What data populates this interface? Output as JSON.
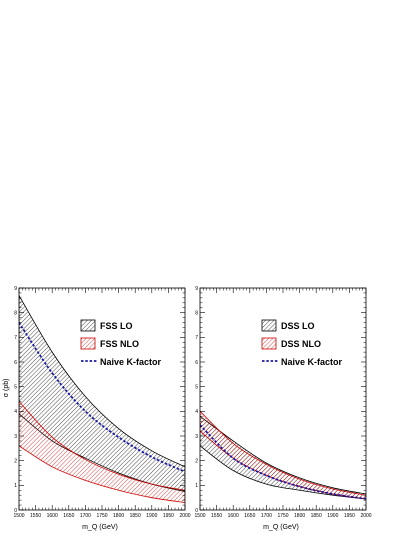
{
  "chart_data": [
    {
      "type": "area",
      "xlabel": "m_Q (GeV)",
      "ylabel": "σ (pb)",
      "xlim": [
        1500,
        2000
      ],
      "ylim": [
        0,
        9
      ],
      "xticks": [
        1500,
        1550,
        1600,
        1650,
        1700,
        1750,
        1800,
        1850,
        1900,
        1950,
        2000
      ],
      "yticks": [
        0,
        1,
        2,
        3,
        4,
        5,
        6,
        7,
        8,
        9
      ],
      "legend_position": "top-right",
      "legend": [
        {
          "label": "FSS LO",
          "style": "black-hatch"
        },
        {
          "label": "FSS NLO",
          "style": "red-hatch"
        },
        {
          "label": "Naive K-factor",
          "style": "blue-dashed"
        }
      ],
      "x": [
        1500,
        1600,
        1700,
        1800,
        1900,
        2000
      ],
      "bands": [
        {
          "name": "FSS LO",
          "color": "#000000",
          "lower": [
            3.9,
            2.8,
            2.1,
            1.5,
            1.05,
            0.75
          ],
          "upper": [
            8.7,
            6.4,
            4.6,
            3.3,
            2.4,
            1.75
          ]
        },
        {
          "name": "FSS NLO",
          "color": "#cc0000",
          "lower": [
            2.6,
            1.75,
            1.2,
            0.8,
            0.5,
            0.3
          ],
          "upper": [
            4.4,
            2.95,
            2.05,
            1.45,
            1.05,
            0.8
          ]
        }
      ],
      "lines": [
        {
          "name": "Naive K-factor",
          "color": "#1a1aa6",
          "values": [
            7.6,
            5.55,
            4.0,
            2.95,
            2.15,
            1.55
          ]
        }
      ]
    },
    {
      "type": "area",
      "xlabel": "m_Q (GeV)",
      "ylabel": "",
      "xlim": [
        1500,
        2000
      ],
      "ylim": [
        0,
        9
      ],
      "xticks": [
        1500,
        1550,
        1600,
        1650,
        1700,
        1750,
        1800,
        1850,
        1900,
        1950,
        2000
      ],
      "yticks": [
        0,
        1,
        2,
        3,
        4,
        5,
        6,
        7,
        8,
        9
      ],
      "legend_position": "top-right",
      "legend": [
        {
          "label": "DSS LO",
          "style": "black-hatch"
        },
        {
          "label": "DSS NLO",
          "style": "red-hatch"
        },
        {
          "label": "Naive K-factor",
          "style": "blue-dashed"
        }
      ],
      "x": [
        1500,
        1600,
        1700,
        1800,
        1900,
        2000
      ],
      "bands": [
        {
          "name": "DSS LO",
          "color": "#000000",
          "lower": [
            2.6,
            1.6,
            1.05,
            0.8,
            0.6,
            0.45
          ],
          "upper": [
            3.8,
            2.8,
            1.9,
            1.3,
            0.9,
            0.65
          ]
        },
        {
          "name": "DSS NLO",
          "color": "#cc0000",
          "lower": [
            3.2,
            2.1,
            1.4,
            0.95,
            0.65,
            0.45
          ],
          "upper": [
            4.0,
            2.7,
            1.85,
            1.25,
            0.85,
            0.6
          ]
        }
      ],
      "lines": [
        {
          "name": "Naive K-factor",
          "color": "#1a1aa6",
          "values": [
            3.45,
            2.1,
            1.4,
            0.95,
            0.65,
            0.45
          ]
        }
      ]
    }
  ]
}
